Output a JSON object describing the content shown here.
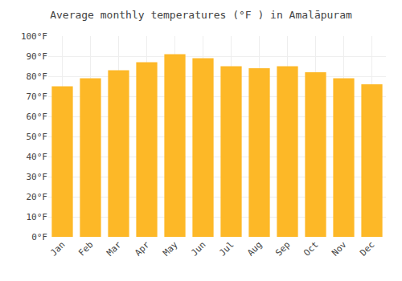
{
  "chart_data": {
    "type": "bar",
    "title": "Average monthly temperatures (°F ) in Amalāpuram",
    "categories": [
      "Jan",
      "Feb",
      "Mar",
      "Apr",
      "May",
      "Jun",
      "Jul",
      "Aug",
      "Sep",
      "Oct",
      "Nov",
      "Dec"
    ],
    "values": [
      75,
      79,
      83,
      87,
      91,
      89,
      85,
      84,
      85,
      82,
      79,
      76
    ],
    "color": "#FDB827",
    "ylim": [
      0,
      100
    ],
    "yticks": [
      {
        "value": 0,
        "label": "0°F"
      },
      {
        "value": 10,
        "label": "10°F"
      },
      {
        "value": 20,
        "label": "20°F"
      },
      {
        "value": 30,
        "label": "30°F"
      },
      {
        "value": 40,
        "label": "40°F"
      },
      {
        "value": 50,
        "label": "50°F"
      },
      {
        "value": 60,
        "label": "60°F"
      },
      {
        "value": 70,
        "label": "70°F"
      },
      {
        "value": 80,
        "label": "80°F"
      },
      {
        "value": 90,
        "label": "90°F"
      },
      {
        "value": 100,
        "label": "100°F"
      }
    ],
    "grid": true
  }
}
